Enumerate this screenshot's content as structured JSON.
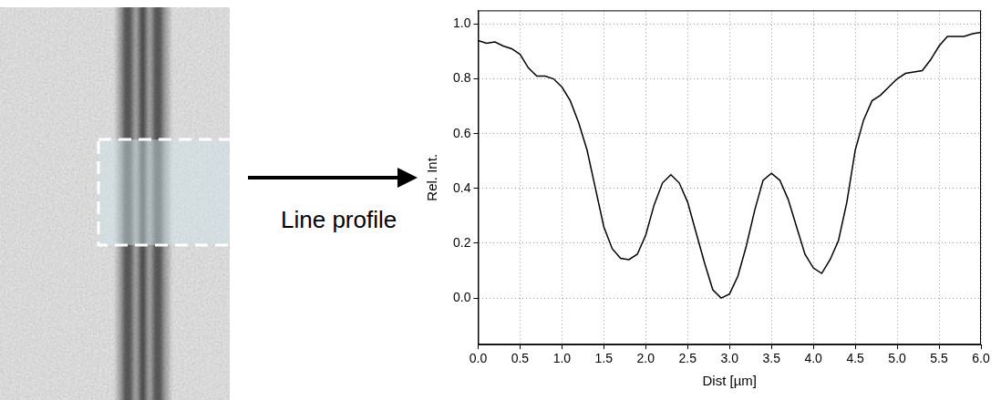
{
  "chart_data": {
    "type": "line",
    "xlabel": "Dist [µm]",
    "ylabel": "Rel. Int.",
    "annotations": [
      "Line profile"
    ],
    "x": [
      0.0,
      0.1,
      0.2,
      0.3,
      0.4,
      0.5,
      0.6,
      0.7,
      0.8,
      0.9,
      1.0,
      1.1,
      1.2,
      1.3,
      1.4,
      1.5,
      1.6,
      1.7,
      1.8,
      1.9,
      2.0,
      2.1,
      2.2,
      2.3,
      2.4,
      2.5,
      2.6,
      2.7,
      2.8,
      2.9,
      3.0,
      3.1,
      3.2,
      3.3,
      3.4,
      3.5,
      3.6,
      3.7,
      3.8,
      3.9,
      4.0,
      4.1,
      4.2,
      4.3,
      4.4,
      4.5,
      4.6,
      4.7,
      4.8,
      4.9,
      5.0,
      5.1,
      5.2,
      5.3,
      5.4,
      5.5,
      5.6,
      5.7,
      5.8,
      5.9,
      6.0
    ],
    "values": [
      0.94,
      0.93,
      0.935,
      0.92,
      0.91,
      0.89,
      0.84,
      0.81,
      0.81,
      0.8,
      0.77,
      0.72,
      0.64,
      0.54,
      0.4,
      0.26,
      0.18,
      0.145,
      0.14,
      0.16,
      0.23,
      0.34,
      0.42,
      0.45,
      0.42,
      0.35,
      0.24,
      0.13,
      0.03,
      0.0,
      0.015,
      0.08,
      0.19,
      0.32,
      0.43,
      0.455,
      0.43,
      0.36,
      0.26,
      0.16,
      0.11,
      0.09,
      0.14,
      0.21,
      0.35,
      0.54,
      0.65,
      0.72,
      0.74,
      0.77,
      0.8,
      0.82,
      0.825,
      0.83,
      0.87,
      0.92,
      0.955,
      0.955,
      0.955,
      0.965,
      0.97
    ],
    "color": "#000000",
    "line_style": "solid",
    "marker": "none",
    "xlim": [
      0,
      6
    ],
    "ylim": [
      -0.17,
      1.05
    ],
    "xticks": [
      {
        "value": 0,
        "label": "0.0"
      },
      0.5,
      {
        "value": 1,
        "label": "1.0"
      },
      1.5,
      {
        "value": 2,
        "label": "2.0"
      },
      2.5,
      {
        "value": 3,
        "label": "3.0"
      },
      3.5,
      {
        "value": 4,
        "label": "4.0"
      },
      4.5,
      {
        "value": 5,
        "label": "5.0"
      },
      5.5,
      {
        "value": 6,
        "label": "6.0"
      }
    ],
    "yticks": [
      {
        "value": 0,
        "label": "0.0"
      },
      0.2,
      0.4,
      0.6,
      0.8,
      {
        "value": 1,
        "label": "1.0"
      }
    ],
    "grid": true
  }
}
